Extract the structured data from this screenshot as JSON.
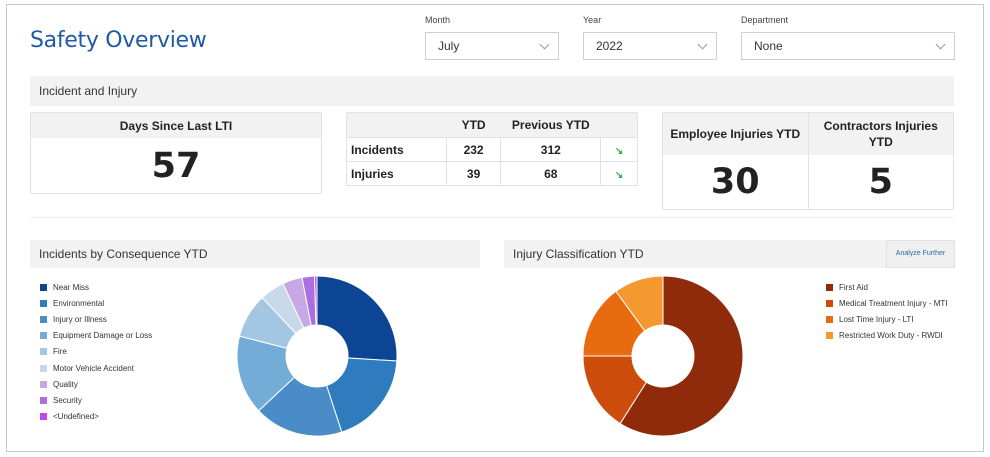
{
  "header": {
    "title": "Safety Overview"
  },
  "filters": {
    "month": {
      "label": "Month",
      "value": "July"
    },
    "year": {
      "label": "Year",
      "value": "2022"
    },
    "department": {
      "label": "Department",
      "value": "None"
    }
  },
  "section": {
    "title": "Incident and Injury"
  },
  "lti": {
    "label": "Days Since Last LTI",
    "value": "57"
  },
  "ytd_table": {
    "headers": [
      "",
      "YTD",
      "Previous YTD",
      ""
    ],
    "rows": [
      {
        "label": "Incidents",
        "ytd": "232",
        "previous": "312",
        "trend_icon": "trend-down-arrow-icon"
      },
      {
        "label": "Injuries",
        "ytd": "39",
        "previous": "68",
        "trend_icon": "trend-down-arrow-icon"
      }
    ]
  },
  "employee_injuries": {
    "label": "Employee Injuries YTD",
    "value": "30"
  },
  "contractor_injuries": {
    "label": "Contractors Injuries YTD",
    "value": "5"
  },
  "incidents_chart": {
    "title": "Incidents by Consequence YTD",
    "chart_data": {
      "type": "pie",
      "donut": true,
      "categories": [
        "Near Miss",
        "Environmental",
        "Injury or Illness",
        "Equipment Damage or Loss",
        "Fire",
        "Motor Vehicle Accident",
        "Quality",
        "Security",
        "<Undefined>"
      ],
      "values": [
        26,
        19,
        18,
        16,
        9,
        5,
        4,
        2.5,
        0.5
      ],
      "colors": [
        "#0b4593",
        "#2e7cbd",
        "#4a8cc8",
        "#73acd6",
        "#a3c6e3",
        "#c8d8ea",
        "#c7a8e6",
        "#ad6ee0",
        "#c246e8"
      ],
      "legend_position": "left"
    }
  },
  "injury_chart": {
    "title": "Injury Classification YTD",
    "analyze_label": "Analyze Further",
    "chart_data": {
      "type": "pie",
      "donut": true,
      "categories": [
        "First Aid",
        "Medical Treatment Injury - MTI",
        "Lost Time Injury - LTI",
        "Restricted Work Duty - RWDI"
      ],
      "values": [
        59,
        16,
        15,
        10
      ],
      "colors": [
        "#8f2a0a",
        "#cc4d0b",
        "#e86c0f",
        "#f5982f"
      ],
      "legend_position": "right"
    }
  }
}
